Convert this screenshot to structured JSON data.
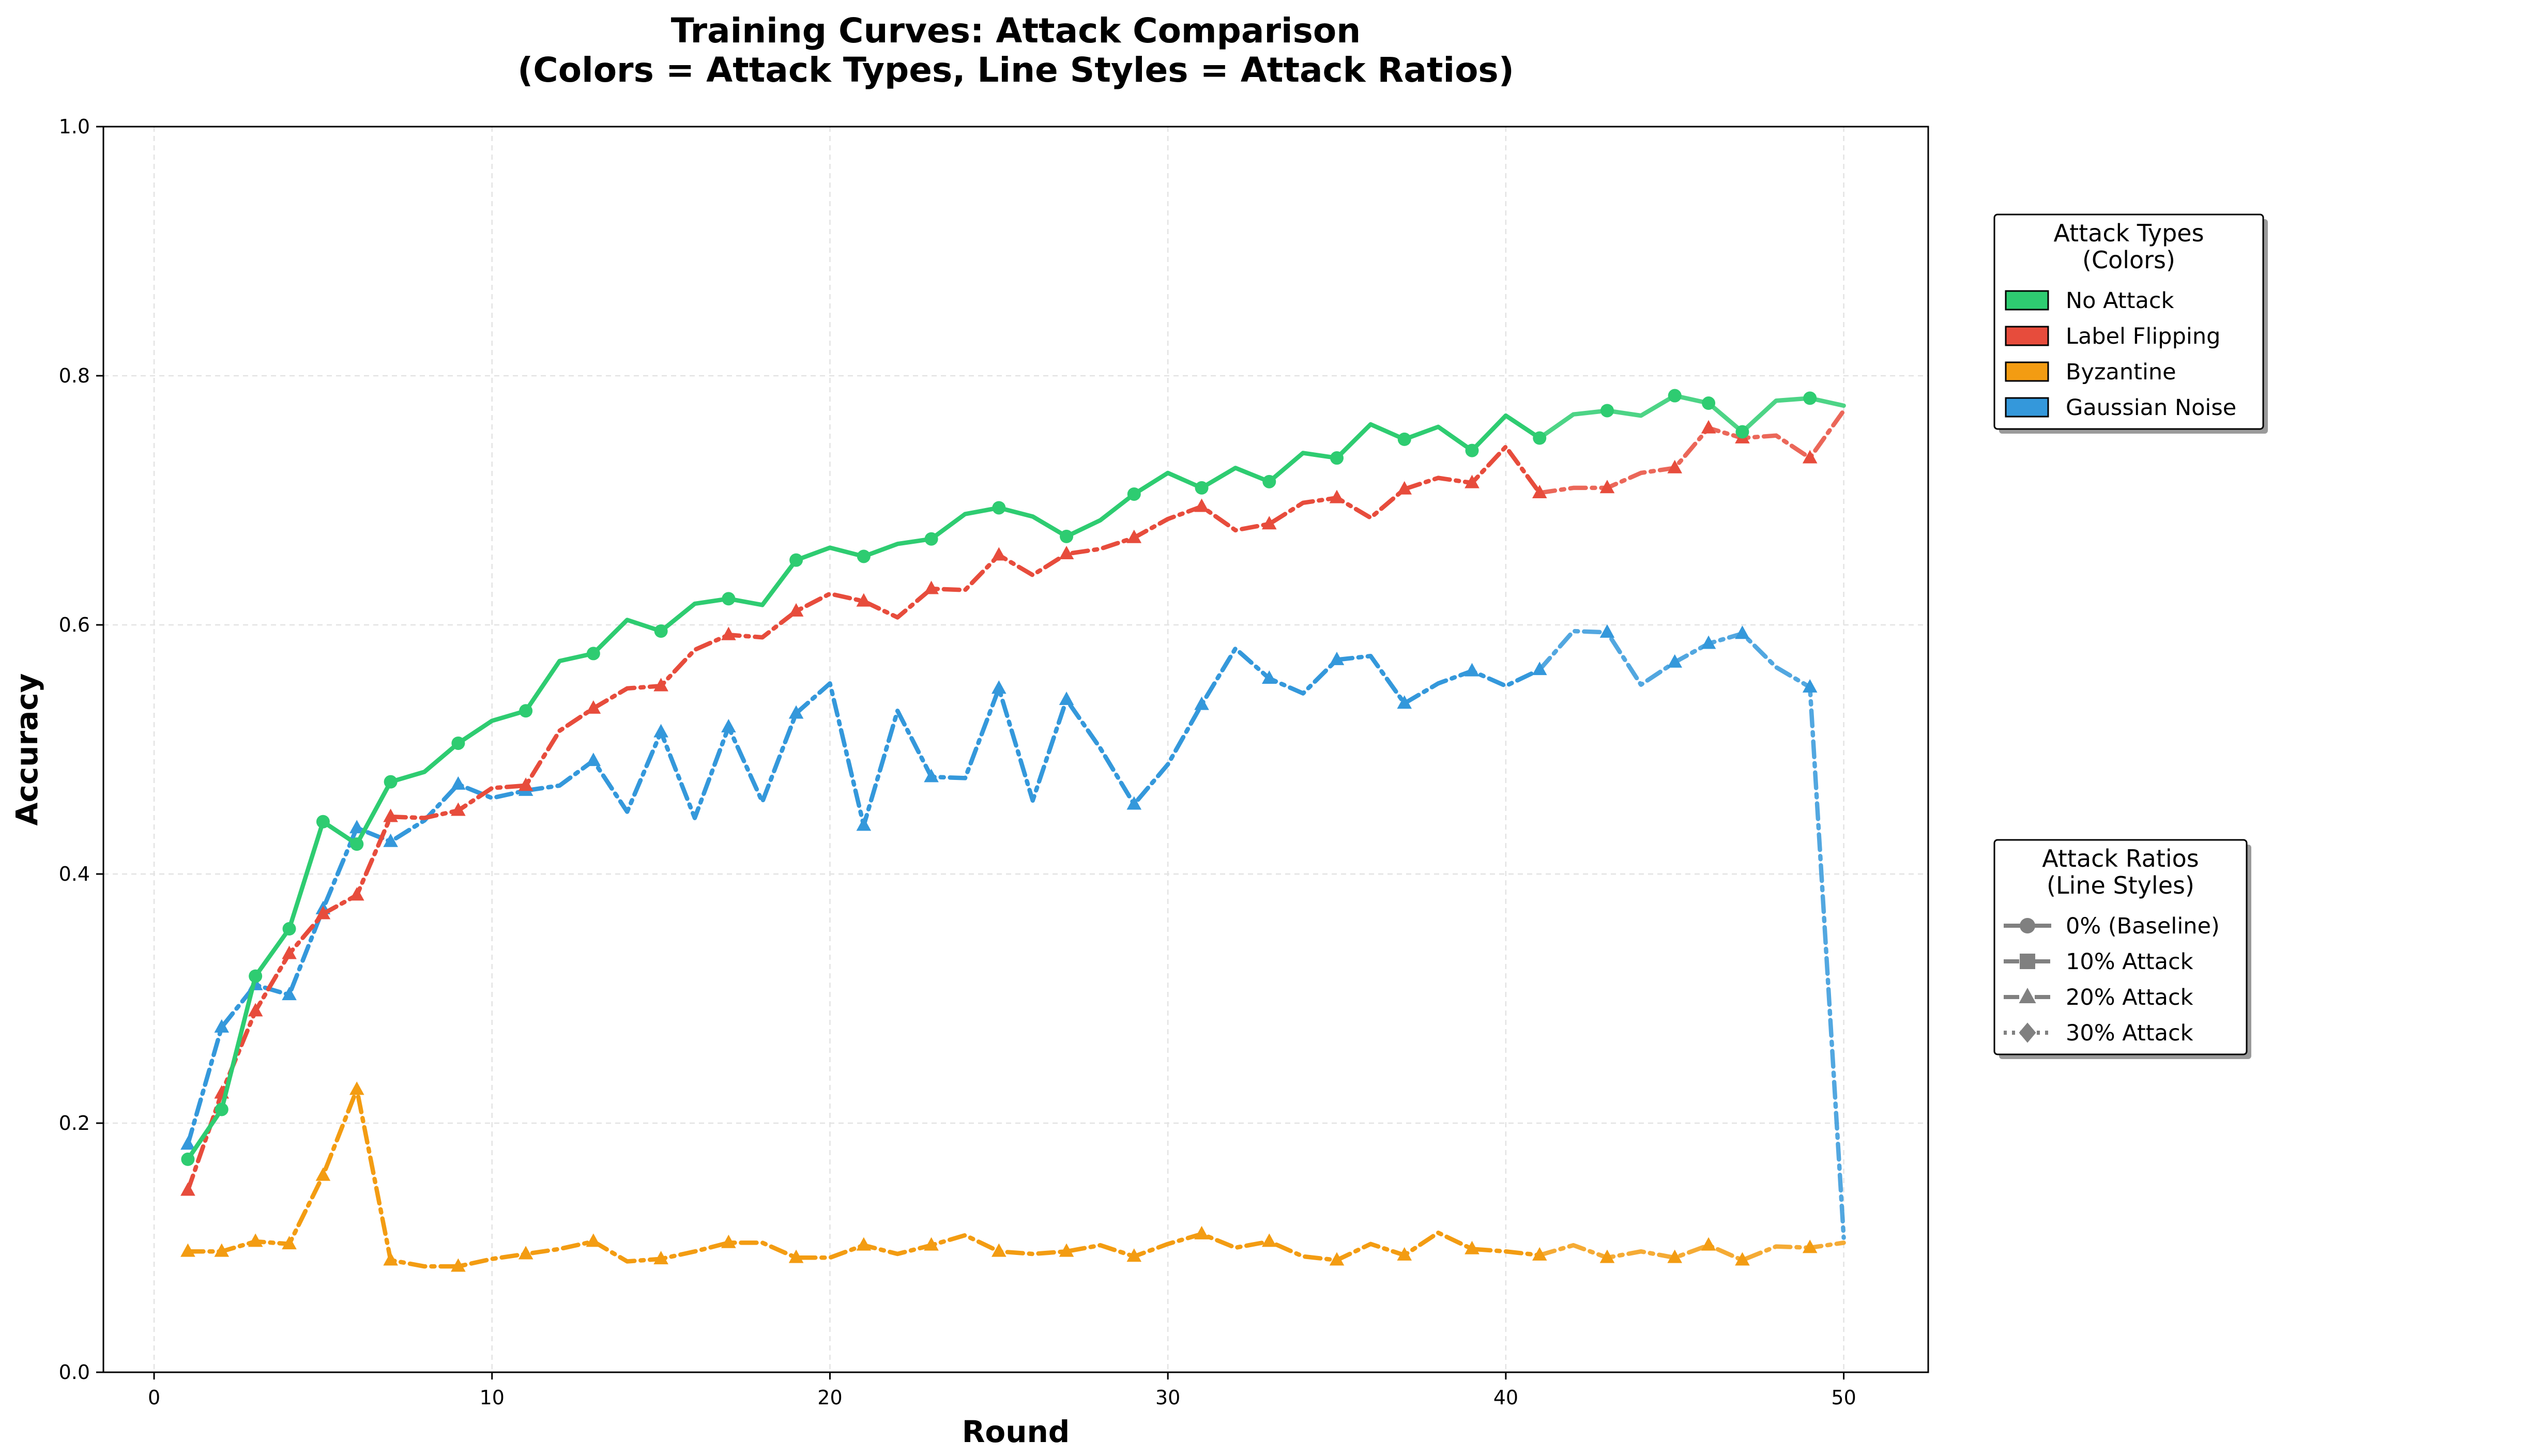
{
  "chart_data": {
    "type": "line",
    "title": "Training Curves: Attack Comparison",
    "subtitle": "(Colors = Attack Types, Line Styles = Attack Ratios)",
    "xlabel": "Round",
    "ylabel": "Accuracy",
    "xlim": [
      -1.5,
      52.5
    ],
    "ylim": [
      0.0,
      1.0
    ],
    "xticks": [
      0,
      10,
      20,
      30,
      40,
      50
    ],
    "yticks": [
      0.0,
      0.2,
      0.4,
      0.6,
      0.8,
      1.0
    ],
    "grid": true,
    "legends": [
      {
        "title_line1": "Attack Types",
        "title_line2": "(Colors)",
        "placement": "right-upper",
        "entries": [
          {
            "label": "No Attack",
            "color": "#2ecc71"
          },
          {
            "label": "Label Flipping",
            "color": "#e74c3c"
          },
          {
            "label": "Byzantine",
            "color": "#f39c12"
          },
          {
            "label": "Gaussian Noise",
            "color": "#3498db"
          }
        ]
      },
      {
        "title_line1": "Attack Ratios",
        "title_line2": "(Line Styles)",
        "placement": "right-lower",
        "entries": [
          {
            "label": "0% (Baseline)",
            "color": "#808080",
            "marker": "circle",
            "dash": "solid"
          },
          {
            "label": "10% Attack",
            "color": "#808080",
            "marker": "square",
            "dash": "dashdot"
          },
          {
            "label": "20% Attack",
            "color": "#808080",
            "marker": "triangle",
            "dash": "dashdot"
          },
          {
            "label": "30% Attack",
            "color": "#808080",
            "marker": "diamond",
            "dash": "dotted"
          }
        ]
      }
    ],
    "x": [
      1,
      2,
      3,
      4,
      5,
      6,
      7,
      8,
      9,
      10,
      11,
      12,
      13,
      14,
      15,
      16,
      17,
      18,
      19,
      20,
      21,
      22,
      23,
      24,
      25,
      26,
      27,
      28,
      29,
      30,
      31,
      32,
      33,
      34,
      35,
      36,
      37,
      38,
      39,
      40,
      41,
      42,
      43,
      44,
      45,
      46,
      47,
      48,
      49,
      50
    ],
    "series": [
      {
        "name": "No Attack",
        "color": "#2ecc71",
        "dash": "solid",
        "marker": "circle",
        "values": [
          0.171,
          0.211,
          0.318,
          0.356,
          0.442,
          0.424,
          0.474,
          0.482,
          0.505,
          0.523,
          0.531,
          0.571,
          0.577,
          0.604,
          0.595,
          0.617,
          0.621,
          0.616,
          0.652,
          0.662,
          0.655,
          0.665,
          0.669,
          0.689,
          0.694,
          0.687,
          0.671,
          0.684,
          0.705,
          0.722,
          0.71,
          0.726,
          0.715,
          0.738,
          0.734,
          0.761,
          0.749,
          0.759,
          0.74,
          0.768,
          0.75,
          0.769,
          0.772,
          0.768,
          0.784,
          0.778,
          0.755,
          0.78,
          0.782,
          0.776
        ]
      },
      {
        "name": "Label Flipping",
        "color": "#e74c3c",
        "dash": "dashdot",
        "marker": "triangle",
        "values": [
          0.146,
          0.224,
          0.29,
          0.336,
          0.368,
          0.383,
          0.446,
          0.445,
          0.451,
          0.469,
          0.471,
          0.515,
          0.533,
          0.549,
          0.551,
          0.58,
          0.592,
          0.59,
          0.611,
          0.625,
          0.619,
          0.606,
          0.629,
          0.628,
          0.656,
          0.64,
          0.657,
          0.661,
          0.67,
          0.685,
          0.695,
          0.676,
          0.681,
          0.698,
          0.702,
          0.686,
          0.709,
          0.718,
          0.714,
          0.743,
          0.706,
          0.71,
          0.71,
          0.722,
          0.726,
          0.758,
          0.75,
          0.752,
          0.734,
          0.772
        ]
      },
      {
        "name": "Gaussian Noise",
        "color": "#3498db",
        "dash": "dashdot",
        "marker": "triangle",
        "values": [
          0.183,
          0.277,
          0.311,
          0.303,
          0.372,
          0.437,
          0.426,
          0.443,
          0.472,
          0.461,
          0.467,
          0.471,
          0.491,
          0.45,
          0.514,
          0.445,
          0.518,
          0.458,
          0.529,
          0.553,
          0.439,
          0.531,
          0.478,
          0.477,
          0.549,
          0.459,
          0.54,
          0.501,
          0.456,
          0.488,
          0.536,
          0.581,
          0.557,
          0.545,
          0.572,
          0.575,
          0.537,
          0.553,
          0.563,
          0.551,
          0.564,
          0.595,
          0.594,
          0.552,
          0.57,
          0.585,
          0.593,
          0.566,
          0.55,
          0.108
        ]
      },
      {
        "name": "Byzantine",
        "color": "#f39c12",
        "dash": "dashdot",
        "marker": "triangle",
        "values": [
          0.097,
          0.097,
          0.105,
          0.103,
          0.158,
          0.227,
          0.09,
          0.085,
          0.085,
          0.091,
          0.095,
          0.099,
          0.105,
          0.089,
          0.091,
          0.097,
          0.104,
          0.104,
          0.092,
          0.092,
          0.102,
          0.095,
          0.102,
          0.11,
          0.097,
          0.095,
          0.097,
          0.102,
          0.093,
          0.103,
          0.111,
          0.1,
          0.105,
          0.093,
          0.09,
          0.103,
          0.094,
          0.112,
          0.099,
          0.097,
          0.094,
          0.102,
          0.092,
          0.097,
          0.092,
          0.102,
          0.09,
          0.101,
          0.1,
          0.104
        ]
      }
    ]
  }
}
